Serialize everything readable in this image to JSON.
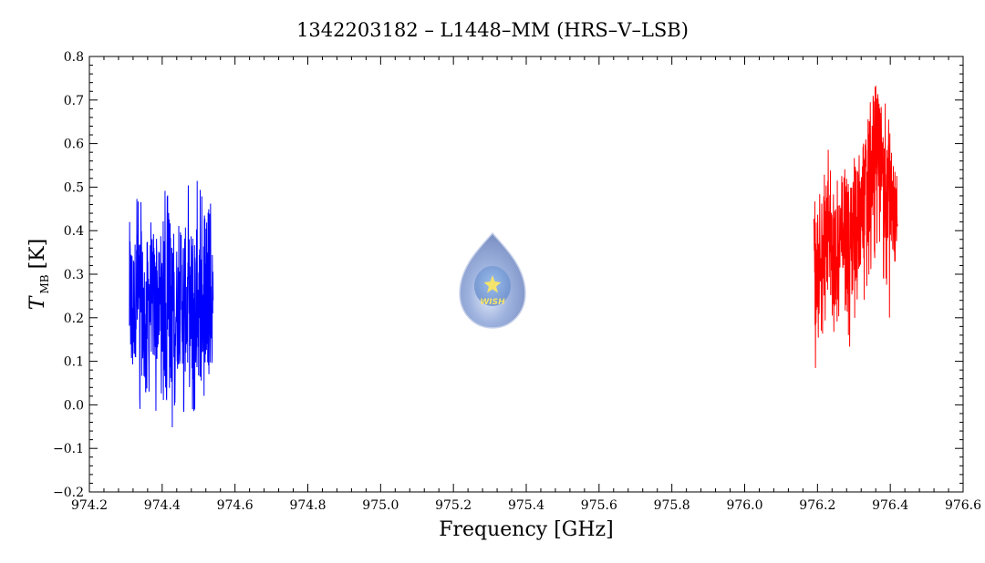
{
  "chart_data": {
    "type": "line",
    "title": "1342203182 – L1448–MM (HRS–V–LSB)",
    "xlabel": "Frequency [GHz]",
    "ylabel_main": "T",
    "ylabel_sub": "MB",
    "ylabel_unit": "[K]",
    "xlim": [
      974.2,
      976.6
    ],
    "ylim": [
      -0.2,
      0.8
    ],
    "x_ticks": [
      "974.2",
      "974.4",
      "974.6",
      "974.8",
      "975.0",
      "975.2",
      "975.4",
      "975.6",
      "975.8",
      "976.0",
      "976.2",
      "976.4",
      "976.6"
    ],
    "y_ticks": [
      "−0.2",
      "−0.1",
      "0.0",
      "0.1",
      "0.2",
      "0.3",
      "0.4",
      "0.5",
      "0.6",
      "0.7",
      "0.8"
    ],
    "grid": false,
    "series": [
      {
        "color": "#0000ff",
        "x": [
          974.31,
          974.32,
          974.33,
          974.34,
          974.35,
          974.36,
          974.37,
          974.38,
          974.39,
          974.4,
          974.41,
          974.42,
          974.43,
          974.44,
          974.45,
          974.46,
          974.47,
          974.48,
          974.49,
          974.5,
          974.51,
          974.52,
          974.53,
          974.54
        ],
        "y": [
          0.25,
          0.22,
          0.26,
          0.24,
          0.21,
          0.23,
          0.25,
          0.22,
          0.24,
          0.23,
          0.21,
          0.2,
          0.24,
          0.22,
          0.23,
          0.25,
          0.22,
          0.21,
          0.24,
          0.23,
          0.22,
          0.24,
          0.23,
          0.24
        ],
        "y_min": [
          0.11,
          0.08,
          0.09,
          -0.03,
          0.05,
          0.0,
          0.04,
          -0.03,
          0.02,
          -0.01,
          0.04,
          -0.13,
          -0.05,
          0.01,
          0.03,
          -0.04,
          0.05,
          -0.03,
          -0.03,
          0.04,
          0.04,
          -0.03,
          0.07,
          0.09
        ],
        "y_max": [
          0.61,
          0.49,
          0.49,
          0.48,
          0.45,
          0.44,
          0.43,
          0.4,
          0.38,
          0.4,
          0.55,
          0.42,
          0.44,
          0.45,
          0.4,
          0.46,
          0.51,
          0.53,
          0.5,
          0.53,
          0.48,
          0.42,
          0.46,
          0.47
        ]
      },
      {
        "color": "#ff0000",
        "x": [
          976.19,
          976.2,
          976.21,
          976.22,
          976.23,
          976.24,
          976.25,
          976.26,
          976.27,
          976.28,
          976.29,
          976.3,
          976.31,
          976.32,
          976.33,
          976.34,
          976.35,
          976.36,
          976.37,
          976.38,
          976.39,
          976.4,
          976.41,
          976.42
        ],
        "y": [
          0.33,
          0.3,
          0.34,
          0.36,
          0.38,
          0.35,
          0.33,
          0.34,
          0.36,
          0.39,
          0.37,
          0.4,
          0.42,
          0.44,
          0.48,
          0.52,
          0.56,
          0.6,
          0.58,
          0.53,
          0.47,
          0.5,
          0.44,
          0.41
        ],
        "y_min": [
          0.04,
          0.13,
          0.15,
          0.17,
          0.2,
          0.18,
          0.14,
          0.21,
          0.22,
          0.2,
          0.12,
          0.17,
          0.23,
          0.22,
          0.24,
          0.28,
          0.3,
          0.34,
          0.35,
          0.28,
          0.27,
          0.18,
          0.3,
          0.32
        ],
        "y_max": [
          0.5,
          0.45,
          0.51,
          0.55,
          0.61,
          0.52,
          0.5,
          0.55,
          0.52,
          0.57,
          0.48,
          0.58,
          0.56,
          0.61,
          0.64,
          0.69,
          0.7,
          0.74,
          0.71,
          0.66,
          0.73,
          0.62,
          0.55,
          0.52
        ]
      }
    ]
  },
  "logo": {
    "text": "WISH"
  }
}
